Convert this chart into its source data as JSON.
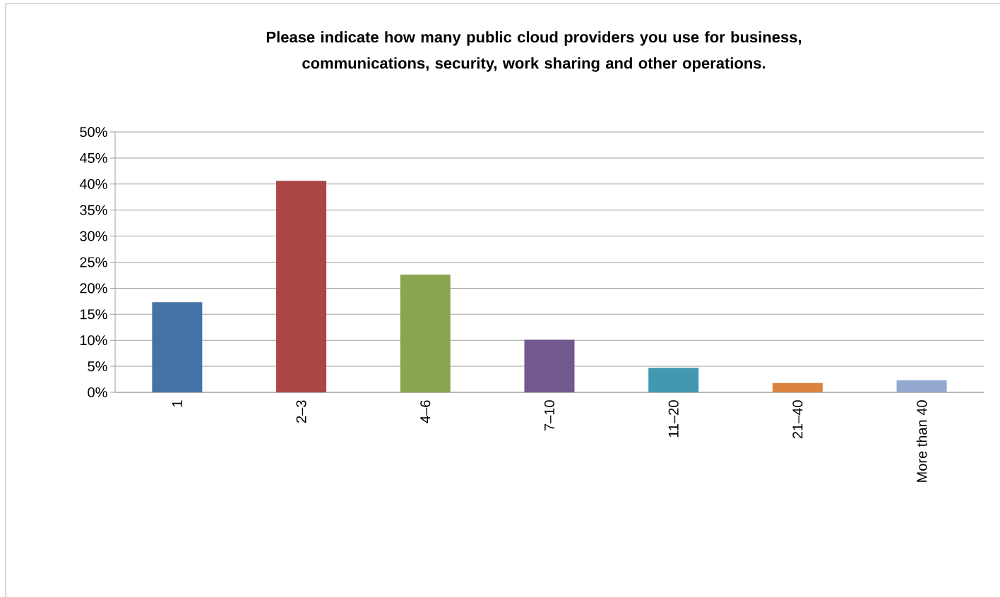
{
  "chart_data": {
    "type": "bar",
    "title": "Please indicate how many public cloud providers you use for business, communications, security, work sharing and other operations.",
    "categories": [
      "1",
      "2–3",
      "4–6",
      "7–10",
      "11–20",
      "21–40",
      "More than 40"
    ],
    "values": [
      17.3,
      40.6,
      22.6,
      10.1,
      4.7,
      1.8,
      2.3
    ],
    "colors": [
      "#4573a7",
      "#aa4643",
      "#89a54e",
      "#71588f",
      "#4198af",
      "#db843d",
      "#93a9cf"
    ],
    "ylim": [
      0,
      50
    ],
    "yticks": [
      {
        "value": 0,
        "label": "0%"
      },
      {
        "value": 5,
        "label": "5%"
      },
      {
        "value": 10,
        "label": "10%"
      },
      {
        "value": 15,
        "label": "15%"
      },
      {
        "value": 20,
        "label": "20%"
      },
      {
        "value": 25,
        "label": "25%"
      },
      {
        "value": 30,
        "label": "30%"
      },
      {
        "value": 35,
        "label": "35%"
      },
      {
        "value": 40,
        "label": "40%"
      },
      {
        "value": 45,
        "label": "45%"
      },
      {
        "value": 50,
        "label": "50%"
      }
    ],
    "grid": "y"
  }
}
